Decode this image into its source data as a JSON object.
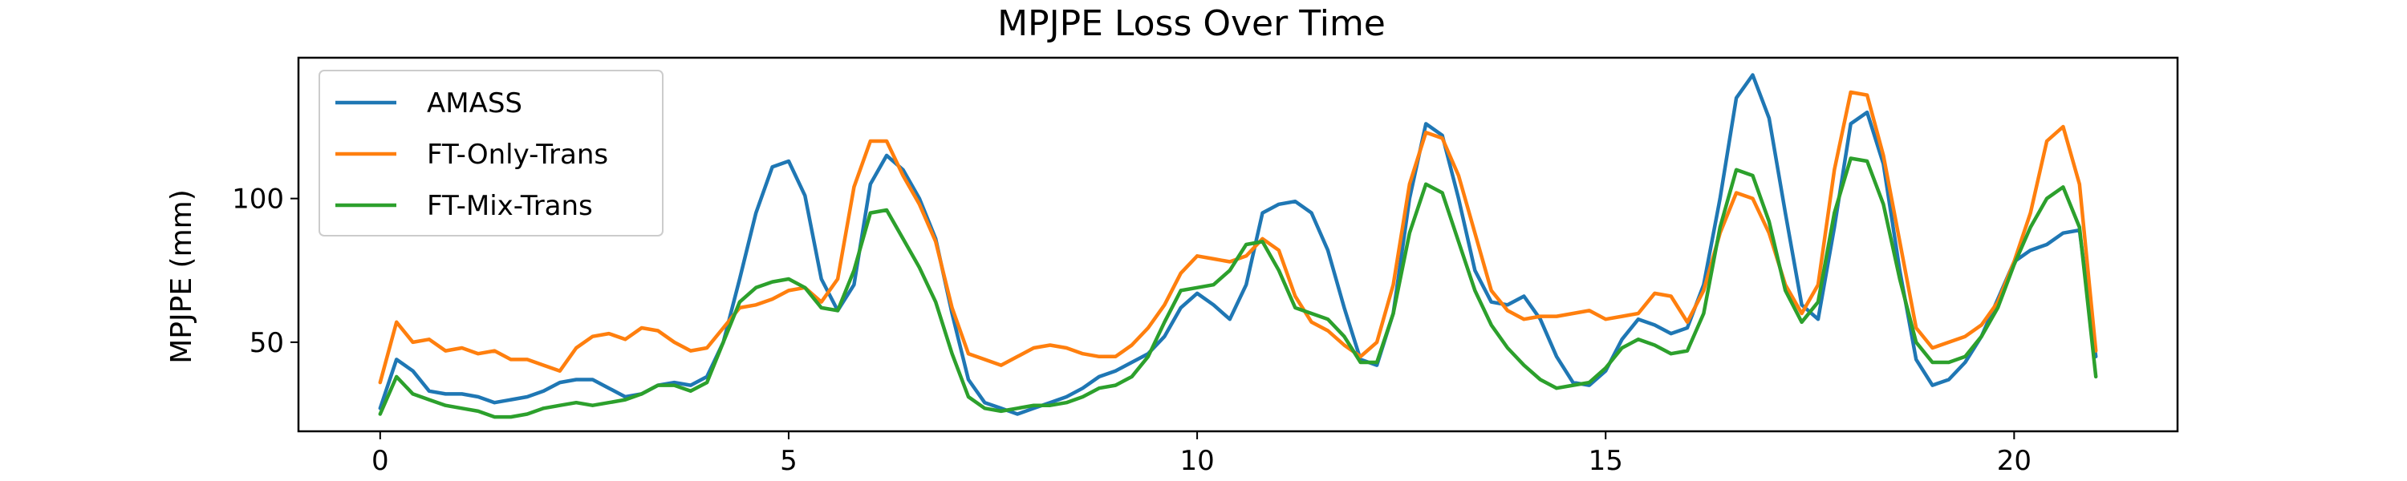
{
  "chart_data": {
    "type": "line",
    "title": "MPJPE Loss Over Time",
    "xlabel": "",
    "ylabel": "MPJPE (mm)",
    "xlim": [
      -1.0,
      22.0
    ],
    "ylim": [
      19,
      149
    ],
    "xticks": [
      0,
      5,
      10,
      15,
      20
    ],
    "yticks": [
      50,
      100
    ],
    "grid": false,
    "legend": "top-left",
    "series": [
      {
        "name": "AMASS",
        "color": "#1f77b4",
        "points": [
          [
            0,
            27
          ],
          [
            0.2,
            44
          ],
          [
            0.4,
            40
          ],
          [
            0.6,
            33
          ],
          [
            0.8,
            32
          ],
          [
            1.0,
            32
          ],
          [
            1.2,
            31
          ],
          [
            1.4,
            29
          ],
          [
            1.6,
            30
          ],
          [
            1.8,
            31
          ],
          [
            2.0,
            33
          ],
          [
            2.2,
            36
          ],
          [
            2.4,
            37
          ],
          [
            2.6,
            37
          ],
          [
            2.8,
            34
          ],
          [
            3.0,
            31
          ],
          [
            3.2,
            32
          ],
          [
            3.4,
            35
          ],
          [
            3.6,
            36
          ],
          [
            3.8,
            35
          ],
          [
            4.0,
            38
          ],
          [
            4.2,
            50
          ],
          [
            4.4,
            72
          ],
          [
            4.6,
            95
          ],
          [
            4.8,
            111
          ],
          [
            5.0,
            113
          ],
          [
            5.2,
            101
          ],
          [
            5.4,
            72
          ],
          [
            5.6,
            61
          ],
          [
            5.8,
            70
          ],
          [
            6.0,
            105
          ],
          [
            6.2,
            115
          ],
          [
            6.4,
            110
          ],
          [
            6.6,
            100
          ],
          [
            6.8,
            86
          ],
          [
            7.0,
            60
          ],
          [
            7.2,
            37
          ],
          [
            7.4,
            29
          ],
          [
            7.6,
            27
          ],
          [
            7.8,
            25
          ],
          [
            8.0,
            27
          ],
          [
            8.2,
            29
          ],
          [
            8.4,
            31
          ],
          [
            8.6,
            34
          ],
          [
            8.8,
            38
          ],
          [
            9.0,
            40
          ],
          [
            9.2,
            43
          ],
          [
            9.4,
            46
          ],
          [
            9.6,
            52
          ],
          [
            9.8,
            62
          ],
          [
            10.0,
            67
          ],
          [
            10.2,
            63
          ],
          [
            10.4,
            58
          ],
          [
            10.6,
            70
          ],
          [
            10.8,
            95
          ],
          [
            11.0,
            98
          ],
          [
            11.2,
            99
          ],
          [
            11.4,
            95
          ],
          [
            11.6,
            82
          ],
          [
            11.8,
            62
          ],
          [
            12.0,
            44
          ],
          [
            12.2,
            42
          ],
          [
            12.4,
            60
          ],
          [
            12.6,
            100
          ],
          [
            12.8,
            126
          ],
          [
            13.0,
            122
          ],
          [
            13.2,
            100
          ],
          [
            13.4,
            75
          ],
          [
            13.6,
            64
          ],
          [
            13.8,
            63
          ],
          [
            14.0,
            66
          ],
          [
            14.2,
            58
          ],
          [
            14.4,
            45
          ],
          [
            14.6,
            36
          ],
          [
            14.8,
            35
          ],
          [
            15.0,
            40
          ],
          [
            15.2,
            51
          ],
          [
            15.4,
            58
          ],
          [
            15.6,
            56
          ],
          [
            15.8,
            53
          ],
          [
            16.0,
            55
          ],
          [
            16.2,
            70
          ],
          [
            16.4,
            100
          ],
          [
            16.6,
            135
          ],
          [
            16.8,
            143
          ],
          [
            17.0,
            128
          ],
          [
            17.2,
            95
          ],
          [
            17.4,
            63
          ],
          [
            17.6,
            58
          ],
          [
            17.8,
            90
          ],
          [
            18.0,
            126
          ],
          [
            18.2,
            130
          ],
          [
            18.4,
            112
          ],
          [
            18.6,
            75
          ],
          [
            18.8,
            44
          ],
          [
            19.0,
            35
          ],
          [
            19.2,
            37
          ],
          [
            19.4,
            43
          ],
          [
            19.6,
            52
          ],
          [
            19.8,
            65
          ],
          [
            20.0,
            78
          ],
          [
            20.2,
            82
          ],
          [
            20.4,
            84
          ],
          [
            20.6,
            88
          ],
          [
            20.8,
            89
          ],
          [
            21.0,
            45
          ]
        ]
      },
      {
        "name": "FT-Only-Trans",
        "color": "#ff7f0e",
        "points": [
          [
            0,
            36
          ],
          [
            0.2,
            57
          ],
          [
            0.4,
            50
          ],
          [
            0.6,
            51
          ],
          [
            0.8,
            47
          ],
          [
            1.0,
            48
          ],
          [
            1.2,
            46
          ],
          [
            1.4,
            47
          ],
          [
            1.6,
            44
          ],
          [
            1.8,
            44
          ],
          [
            2.0,
            42
          ],
          [
            2.2,
            40
          ],
          [
            2.4,
            48
          ],
          [
            2.6,
            52
          ],
          [
            2.8,
            53
          ],
          [
            3.0,
            51
          ],
          [
            3.2,
            55
          ],
          [
            3.4,
            54
          ],
          [
            3.6,
            50
          ],
          [
            3.8,
            47
          ],
          [
            4.0,
            48
          ],
          [
            4.2,
            55
          ],
          [
            4.4,
            62
          ],
          [
            4.6,
            63
          ],
          [
            4.8,
            65
          ],
          [
            5.0,
            68
          ],
          [
            5.2,
            69
          ],
          [
            5.4,
            64
          ],
          [
            5.6,
            72
          ],
          [
            5.8,
            104
          ],
          [
            6.0,
            120
          ],
          [
            6.2,
            120
          ],
          [
            6.4,
            108
          ],
          [
            6.6,
            98
          ],
          [
            6.8,
            85
          ],
          [
            7.0,
            62
          ],
          [
            7.2,
            46
          ],
          [
            7.4,
            44
          ],
          [
            7.6,
            42
          ],
          [
            7.8,
            45
          ],
          [
            8.0,
            48
          ],
          [
            8.2,
            49
          ],
          [
            8.4,
            48
          ],
          [
            8.6,
            46
          ],
          [
            8.8,
            45
          ],
          [
            9.0,
            45
          ],
          [
            9.2,
            49
          ],
          [
            9.4,
            55
          ],
          [
            9.6,
            63
          ],
          [
            9.8,
            74
          ],
          [
            10.0,
            80
          ],
          [
            10.2,
            79
          ],
          [
            10.4,
            78
          ],
          [
            10.6,
            80
          ],
          [
            10.8,
            86
          ],
          [
            11.0,
            82
          ],
          [
            11.2,
            66
          ],
          [
            11.4,
            57
          ],
          [
            11.6,
            54
          ],
          [
            11.8,
            49
          ],
          [
            12.0,
            45
          ],
          [
            12.2,
            50
          ],
          [
            12.4,
            70
          ],
          [
            12.6,
            105
          ],
          [
            12.8,
            123
          ],
          [
            13.0,
            121
          ],
          [
            13.2,
            108
          ],
          [
            13.4,
            88
          ],
          [
            13.6,
            68
          ],
          [
            13.8,
            61
          ],
          [
            14.0,
            58
          ],
          [
            14.2,
            59
          ],
          [
            14.4,
            59
          ],
          [
            14.6,
            60
          ],
          [
            14.8,
            61
          ],
          [
            15.0,
            58
          ],
          [
            15.2,
            59
          ],
          [
            15.4,
            60
          ],
          [
            15.6,
            67
          ],
          [
            15.8,
            66
          ],
          [
            16.0,
            57
          ],
          [
            16.2,
            68
          ],
          [
            16.4,
            88
          ],
          [
            16.6,
            102
          ],
          [
            16.8,
            100
          ],
          [
            17.0,
            88
          ],
          [
            17.2,
            70
          ],
          [
            17.4,
            60
          ],
          [
            17.6,
            70
          ],
          [
            17.8,
            110
          ],
          [
            18.0,
            137
          ],
          [
            18.2,
            136
          ],
          [
            18.4,
            115
          ],
          [
            18.6,
            85
          ],
          [
            18.8,
            55
          ],
          [
            19.0,
            48
          ],
          [
            19.2,
            50
          ],
          [
            19.4,
            52
          ],
          [
            19.6,
            56
          ],
          [
            19.8,
            64
          ],
          [
            20.0,
            78
          ],
          [
            20.2,
            95
          ],
          [
            20.4,
            120
          ],
          [
            20.6,
            125
          ],
          [
            20.8,
            105
          ],
          [
            21.0,
            47
          ]
        ]
      },
      {
        "name": "FT-Mix-Trans",
        "color": "#2ca02c",
        "points": [
          [
            0,
            25
          ],
          [
            0.2,
            38
          ],
          [
            0.4,
            32
          ],
          [
            0.6,
            30
          ],
          [
            0.8,
            28
          ],
          [
            1.0,
            27
          ],
          [
            1.2,
            26
          ],
          [
            1.4,
            24
          ],
          [
            1.6,
            24
          ],
          [
            1.8,
            25
          ],
          [
            2.0,
            27
          ],
          [
            2.2,
            28
          ],
          [
            2.4,
            29
          ],
          [
            2.6,
            28
          ],
          [
            2.8,
            29
          ],
          [
            3.0,
            30
          ],
          [
            3.2,
            32
          ],
          [
            3.4,
            35
          ],
          [
            3.6,
            35
          ],
          [
            3.8,
            33
          ],
          [
            4.0,
            36
          ],
          [
            4.2,
            50
          ],
          [
            4.4,
            64
          ],
          [
            4.6,
            69
          ],
          [
            4.8,
            71
          ],
          [
            5.0,
            72
          ],
          [
            5.2,
            69
          ],
          [
            5.4,
            62
          ],
          [
            5.6,
            61
          ],
          [
            5.8,
            75
          ],
          [
            6.0,
            95
          ],
          [
            6.2,
            96
          ],
          [
            6.4,
            86
          ],
          [
            6.6,
            76
          ],
          [
            6.8,
            64
          ],
          [
            7.0,
            46
          ],
          [
            7.2,
            31
          ],
          [
            7.4,
            27
          ],
          [
            7.6,
            26
          ],
          [
            7.8,
            27
          ],
          [
            8.0,
            28
          ],
          [
            8.2,
            28
          ],
          [
            8.4,
            29
          ],
          [
            8.6,
            31
          ],
          [
            8.8,
            34
          ],
          [
            9.0,
            35
          ],
          [
            9.2,
            38
          ],
          [
            9.4,
            45
          ],
          [
            9.6,
            57
          ],
          [
            9.8,
            68
          ],
          [
            10.0,
            69
          ],
          [
            10.2,
            70
          ],
          [
            10.4,
            75
          ],
          [
            10.6,
            84
          ],
          [
            10.8,
            85
          ],
          [
            11.0,
            75
          ],
          [
            11.2,
            62
          ],
          [
            11.4,
            60
          ],
          [
            11.6,
            58
          ],
          [
            11.8,
            52
          ],
          [
            12.0,
            43
          ],
          [
            12.2,
            43
          ],
          [
            12.4,
            60
          ],
          [
            12.6,
            88
          ],
          [
            12.8,
            105
          ],
          [
            13.0,
            102
          ],
          [
            13.2,
            85
          ],
          [
            13.4,
            68
          ],
          [
            13.6,
            56
          ],
          [
            13.8,
            48
          ],
          [
            14.0,
            42
          ],
          [
            14.2,
            37
          ],
          [
            14.4,
            34
          ],
          [
            14.6,
            35
          ],
          [
            14.8,
            36
          ],
          [
            15.0,
            41
          ],
          [
            15.2,
            48
          ],
          [
            15.4,
            51
          ],
          [
            15.6,
            49
          ],
          [
            15.8,
            46
          ],
          [
            16.0,
            47
          ],
          [
            16.2,
            60
          ],
          [
            16.4,
            90
          ],
          [
            16.6,
            110
          ],
          [
            16.8,
            108
          ],
          [
            17.0,
            92
          ],
          [
            17.2,
            68
          ],
          [
            17.4,
            57
          ],
          [
            17.6,
            64
          ],
          [
            17.8,
            95
          ],
          [
            18.0,
            114
          ],
          [
            18.2,
            113
          ],
          [
            18.4,
            98
          ],
          [
            18.6,
            72
          ],
          [
            18.8,
            50
          ],
          [
            19.0,
            43
          ],
          [
            19.2,
            43
          ],
          [
            19.4,
            45
          ],
          [
            19.6,
            52
          ],
          [
            19.8,
            62
          ],
          [
            20.0,
            77
          ],
          [
            20.2,
            90
          ],
          [
            20.4,
            100
          ],
          [
            20.6,
            104
          ],
          [
            20.8,
            90
          ],
          [
            21.0,
            38
          ]
        ]
      }
    ]
  }
}
